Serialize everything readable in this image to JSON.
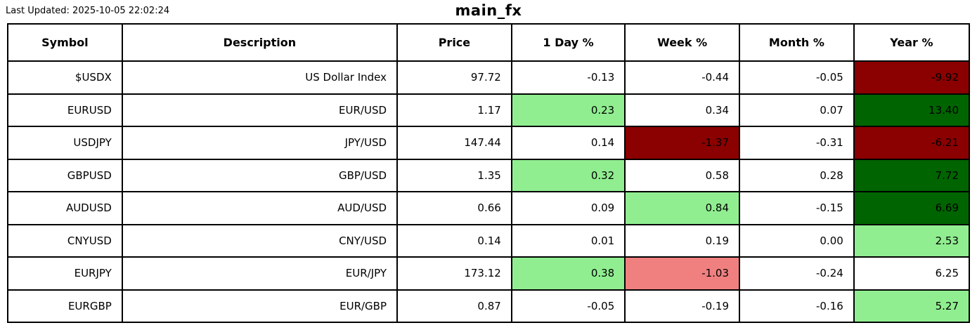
{
  "meta": {
    "last_updated": "Last Updated: 2025-10-05 22:02:24",
    "title": "main_fx"
  },
  "colors": {
    "strong_positive": "#006400",
    "mild_positive": "#90EE90",
    "strong_negative": "#8B0000",
    "mild_negative": "#F08080",
    "neutral": "#FFFFFF",
    "border": "#000000",
    "text": "#000000"
  },
  "table": {
    "columns": [
      "Symbol",
      "Description",
      "Price",
      "1 Day %",
      "Week %",
      "Month %",
      "Year %"
    ],
    "rows": [
      {
        "symbol": "$USDX",
        "description": "US Dollar Index",
        "price": "97.72",
        "day": {
          "value": "-0.13",
          "bg": "neutral"
        },
        "week": {
          "value": "-0.44",
          "bg": "neutral"
        },
        "month": {
          "value": "-0.05",
          "bg": "neutral"
        },
        "year": {
          "value": "-9.92",
          "bg": "strong_negative"
        }
      },
      {
        "symbol": "EURUSD",
        "description": "EUR/USD",
        "price": "1.17",
        "day": {
          "value": "0.23",
          "bg": "mild_positive"
        },
        "week": {
          "value": "0.34",
          "bg": "neutral"
        },
        "month": {
          "value": "0.07",
          "bg": "neutral"
        },
        "year": {
          "value": "13.40",
          "bg": "strong_positive"
        }
      },
      {
        "symbol": "USDJPY",
        "description": "JPY/USD",
        "price": "147.44",
        "day": {
          "value": "0.14",
          "bg": "neutral"
        },
        "week": {
          "value": "-1.37",
          "bg": "strong_negative"
        },
        "month": {
          "value": "-0.31",
          "bg": "neutral"
        },
        "year": {
          "value": "-6.21",
          "bg": "strong_negative"
        }
      },
      {
        "symbol": "GBPUSD",
        "description": "GBP/USD",
        "price": "1.35",
        "day": {
          "value": "0.32",
          "bg": "mild_positive"
        },
        "week": {
          "value": "0.58",
          "bg": "neutral"
        },
        "month": {
          "value": "0.28",
          "bg": "neutral"
        },
        "year": {
          "value": "7.72",
          "bg": "strong_positive"
        }
      },
      {
        "symbol": "AUDUSD",
        "description": "AUD/USD",
        "price": "0.66",
        "day": {
          "value": "0.09",
          "bg": "neutral"
        },
        "week": {
          "value": "0.84",
          "bg": "mild_positive"
        },
        "month": {
          "value": "-0.15",
          "bg": "neutral"
        },
        "year": {
          "value": "6.69",
          "bg": "strong_positive"
        }
      },
      {
        "symbol": "CNYUSD",
        "description": "CNY/USD",
        "price": "0.14",
        "day": {
          "value": "0.01",
          "bg": "neutral"
        },
        "week": {
          "value": "0.19",
          "bg": "neutral"
        },
        "month": {
          "value": "0.00",
          "bg": "neutral"
        },
        "year": {
          "value": "2.53",
          "bg": "mild_positive"
        }
      },
      {
        "symbol": "EURJPY",
        "description": "EUR/JPY",
        "price": "173.12",
        "day": {
          "value": "0.38",
          "bg": "mild_positive"
        },
        "week": {
          "value": "-1.03",
          "bg": "mild_negative"
        },
        "month": {
          "value": "-0.24",
          "bg": "neutral"
        },
        "year": {
          "value": "6.25",
          "bg": "neutral"
        }
      },
      {
        "symbol": "EURGBP",
        "description": "EUR/GBP",
        "price": "0.87",
        "day": {
          "value": "-0.05",
          "bg": "neutral"
        },
        "week": {
          "value": "-0.19",
          "bg": "neutral"
        },
        "month": {
          "value": "-0.16",
          "bg": "neutral"
        },
        "year": {
          "value": "5.27",
          "bg": "mild_positive"
        }
      }
    ]
  },
  "chart_data": {
    "type": "table",
    "title": "main_fx",
    "annotations": [
      "Last Updated: 2025-10-05 22:02:24"
    ],
    "columns": [
      "Symbol",
      "Description",
      "Price",
      "1 Day %",
      "Week %",
      "Month %",
      "Year %"
    ],
    "rows": [
      [
        "$USDX",
        "US Dollar Index",
        97.72,
        -0.13,
        -0.44,
        -0.05,
        -9.92
      ],
      [
        "EURUSD",
        "EUR/USD",
        1.17,
        0.23,
        0.34,
        0.07,
        13.4
      ],
      [
        "USDJPY",
        "JPY/USD",
        147.44,
        0.14,
        -1.37,
        -0.31,
        -6.21
      ],
      [
        "GBPUSD",
        "GBP/USD",
        1.35,
        0.32,
        0.58,
        0.28,
        7.72
      ],
      [
        "AUDUSD",
        "AUD/USD",
        0.66,
        0.09,
        0.84,
        -0.15,
        6.69
      ],
      [
        "CNYUSD",
        "CNY/USD",
        0.14,
        0.01,
        0.19,
        0.0,
        2.53
      ],
      [
        "EURJPY",
        "EUR/JPY",
        173.12,
        0.38,
        -1.03,
        -0.24,
        6.25
      ],
      [
        "EURGBP",
        "EUR/GBP",
        0.87,
        -0.05,
        -0.19,
        -0.16,
        5.27
      ]
    ],
    "layout_hints": {
      "grid": true,
      "header_row": true,
      "value_alignment": "right",
      "highlight_colors": {
        "strong_positive": "#006400",
        "mild_positive": "#90EE90",
        "strong_negative": "#8B0000",
        "mild_negative": "#F08080"
      }
    }
  }
}
